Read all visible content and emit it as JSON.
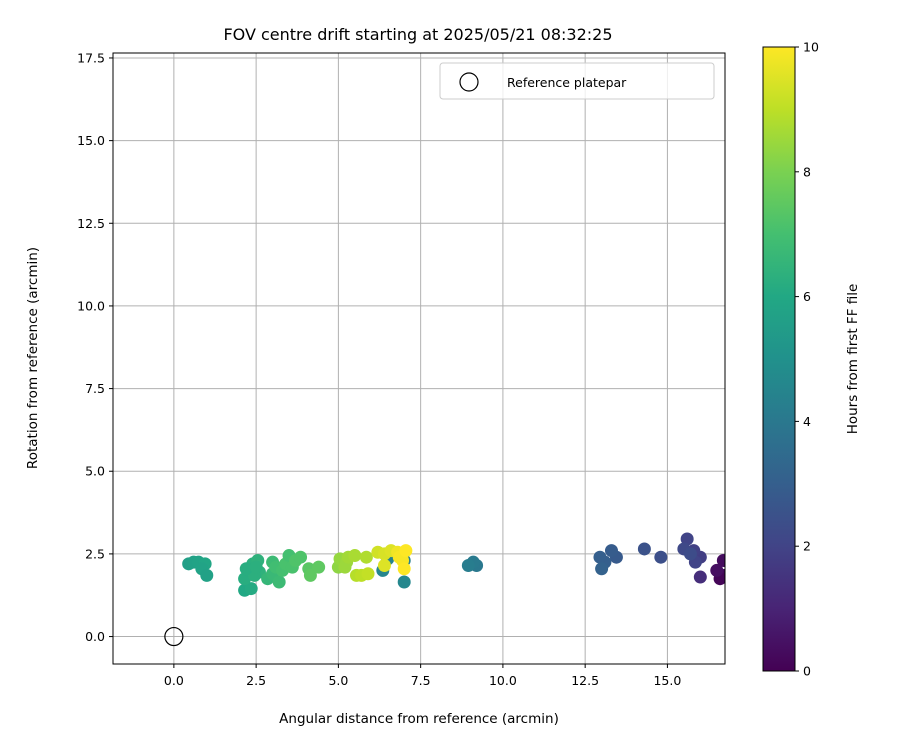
{
  "chart_data": {
    "type": "scatter",
    "title": "FOV centre drift starting at 2025/05/21 08:32:25",
    "xlabel": "Angular distance from reference (arcmin)",
    "ylabel": "Rotation from reference (arcmin)",
    "xlim": [
      -1.85,
      16.75
    ],
    "ylim": [
      -0.83,
      17.65
    ],
    "xticks": [
      0.0,
      2.5,
      5.0,
      7.5,
      10.0,
      12.5,
      15.0
    ],
    "yticks": [
      0.0,
      2.5,
      5.0,
      7.5,
      10.0,
      12.5,
      15.0,
      17.5
    ],
    "grid": true,
    "legend": {
      "placement": "top-right",
      "entries": [
        "Reference platepar"
      ]
    },
    "reference_point": {
      "name": "Reference platepar",
      "x": 0.0,
      "y": 0.0
    },
    "colorbar": {
      "label": "Hours from first FF file",
      "min": 0,
      "max": 10,
      "ticks": [
        0,
        2,
        4,
        6,
        8,
        10
      ],
      "colormap": "viridis"
    },
    "points": [
      {
        "x": 16.7,
        "y": 2.3,
        "h": 0.3
      },
      {
        "x": 16.7,
        "y": 1.85,
        "h": 0.2
      },
      {
        "x": 16.6,
        "y": 1.75,
        "h": 0.1
      },
      {
        "x": 16.5,
        "y": 2.0,
        "h": 0.4
      },
      {
        "x": 16.0,
        "y": 1.8,
        "h": 1.3
      },
      {
        "x": 16.0,
        "y": 2.4,
        "h": 1.8
      },
      {
        "x": 15.8,
        "y": 2.6,
        "h": 1.9
      },
      {
        "x": 15.85,
        "y": 2.25,
        "h": 2.0
      },
      {
        "x": 15.6,
        "y": 2.95,
        "h": 2.0
      },
      {
        "x": 15.5,
        "y": 2.65,
        "h": 2.2
      },
      {
        "x": 15.7,
        "y": 2.5,
        "h": 2.3
      },
      {
        "x": 14.8,
        "y": 2.4,
        "h": 2.4
      },
      {
        "x": 14.3,
        "y": 2.65,
        "h": 2.5
      },
      {
        "x": 13.45,
        "y": 2.4,
        "h": 2.8
      },
      {
        "x": 13.3,
        "y": 2.6,
        "h": 2.9
      },
      {
        "x": 13.1,
        "y": 2.25,
        "h": 3.0
      },
      {
        "x": 12.95,
        "y": 2.4,
        "h": 3.0
      },
      {
        "x": 13.0,
        "y": 2.05,
        "h": 3.1
      },
      {
        "x": 9.2,
        "y": 2.15,
        "h": 4.0
      },
      {
        "x": 9.1,
        "y": 2.25,
        "h": 4.1
      },
      {
        "x": 8.95,
        "y": 2.15,
        "h": 4.2
      },
      {
        "x": 7.0,
        "y": 1.65,
        "h": 4.6
      },
      {
        "x": 6.35,
        "y": 2.0,
        "h": 4.5
      },
      {
        "x": 6.5,
        "y": 2.35,
        "h": 4.4
      },
      {
        "x": 7.0,
        "y": 2.3,
        "h": 4.3
      },
      {
        "x": 0.45,
        "y": 2.2,
        "h": 5.6
      },
      {
        "x": 0.6,
        "y": 2.25,
        "h": 5.7
      },
      {
        "x": 0.75,
        "y": 2.25,
        "h": 5.8
      },
      {
        "x": 0.95,
        "y": 2.2,
        "h": 5.9
      },
      {
        "x": 0.85,
        "y": 2.05,
        "h": 5.8
      },
      {
        "x": 1.0,
        "y": 1.85,
        "h": 5.7
      },
      {
        "x": 2.15,
        "y": 1.4,
        "h": 6.0
      },
      {
        "x": 2.35,
        "y": 1.45,
        "h": 6.1
      },
      {
        "x": 2.15,
        "y": 1.75,
        "h": 6.2
      },
      {
        "x": 2.3,
        "y": 2.0,
        "h": 6.2
      },
      {
        "x": 2.4,
        "y": 2.2,
        "h": 6.3
      },
      {
        "x": 2.55,
        "y": 2.3,
        "h": 6.4
      },
      {
        "x": 2.6,
        "y": 1.95,
        "h": 6.4
      },
      {
        "x": 2.45,
        "y": 1.85,
        "h": 6.3
      },
      {
        "x": 2.2,
        "y": 2.05,
        "h": 6.2
      },
      {
        "x": 2.5,
        "y": 2.1,
        "h": 6.3
      },
      {
        "x": 2.85,
        "y": 1.75,
        "h": 6.6
      },
      {
        "x": 3.0,
        "y": 1.9,
        "h": 6.7
      },
      {
        "x": 3.0,
        "y": 2.25,
        "h": 6.8
      },
      {
        "x": 3.1,
        "y": 2.1,
        "h": 6.9
      },
      {
        "x": 3.2,
        "y": 1.65,
        "h": 6.8
      },
      {
        "x": 3.3,
        "y": 2.0,
        "h": 7.0
      },
      {
        "x": 3.4,
        "y": 2.2,
        "h": 7.1
      },
      {
        "x": 3.5,
        "y": 2.45,
        "h": 7.0
      },
      {
        "x": 3.6,
        "y": 2.1,
        "h": 7.1
      },
      {
        "x": 3.7,
        "y": 2.3,
        "h": 7.2
      },
      {
        "x": 3.85,
        "y": 2.4,
        "h": 7.2
      },
      {
        "x": 4.1,
        "y": 2.05,
        "h": 7.4
      },
      {
        "x": 4.15,
        "y": 1.85,
        "h": 7.5
      },
      {
        "x": 4.4,
        "y": 2.1,
        "h": 7.5
      },
      {
        "x": 5.0,
        "y": 2.1,
        "h": 8.3
      },
      {
        "x": 5.05,
        "y": 2.35,
        "h": 8.4
      },
      {
        "x": 5.2,
        "y": 2.1,
        "h": 8.5
      },
      {
        "x": 5.25,
        "y": 2.25,
        "h": 8.5
      },
      {
        "x": 5.3,
        "y": 2.4,
        "h": 8.6
      },
      {
        "x": 5.5,
        "y": 2.45,
        "h": 8.7
      },
      {
        "x": 5.55,
        "y": 1.85,
        "h": 8.9
      },
      {
        "x": 5.7,
        "y": 1.85,
        "h": 9.0
      },
      {
        "x": 5.85,
        "y": 2.4,
        "h": 8.8
      },
      {
        "x": 5.9,
        "y": 1.9,
        "h": 9.1
      },
      {
        "x": 6.2,
        "y": 2.55,
        "h": 9.3
      },
      {
        "x": 6.4,
        "y": 2.5,
        "h": 9.4
      },
      {
        "x": 6.6,
        "y": 2.6,
        "h": 9.5
      },
      {
        "x": 6.4,
        "y": 2.15,
        "h": 9.5
      },
      {
        "x": 6.8,
        "y": 2.55,
        "h": 9.8
      },
      {
        "x": 6.85,
        "y": 2.4,
        "h": 9.9
      },
      {
        "x": 6.95,
        "y": 2.3,
        "h": 9.9
      },
      {
        "x": 7.05,
        "y": 2.6,
        "h": 10.0
      },
      {
        "x": 7.0,
        "y": 2.05,
        "h": 10.0
      }
    ]
  }
}
